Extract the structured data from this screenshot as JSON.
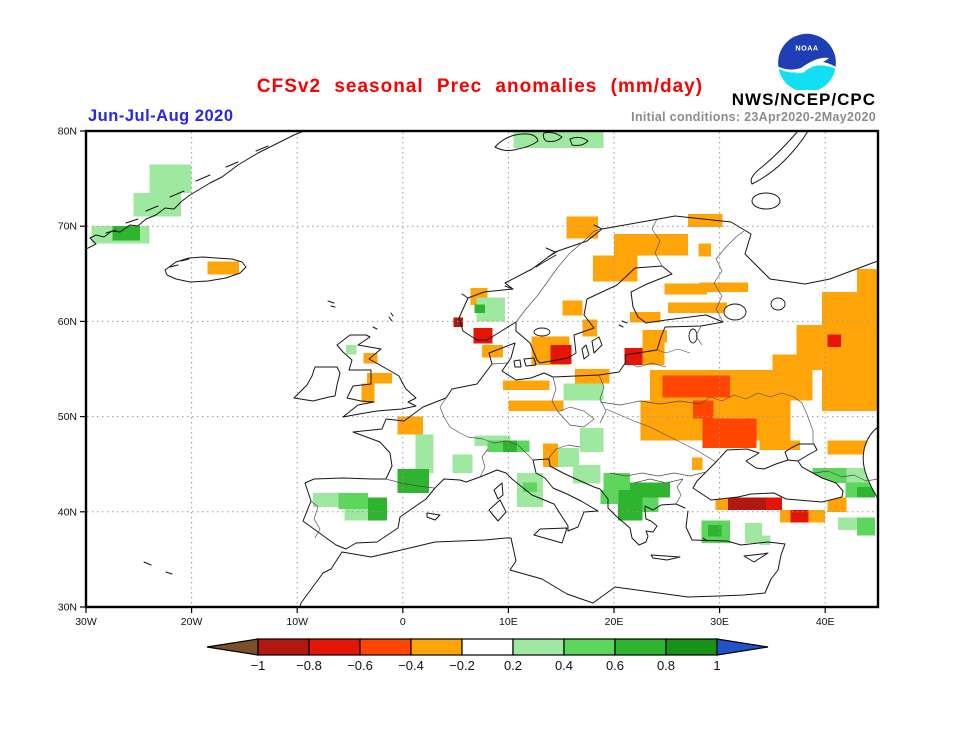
{
  "header": {
    "title": "CFSv2 seasonal Prec anomalies (mm/day)",
    "agency": "NWS/NCEP/CPC",
    "logo_label": "NOAA",
    "season_label": "Jun-Jul-Aug 2020",
    "initial_conditions": "Initial conditions: 23Apr2020-2May2020",
    "title_color": "#fb0000",
    "season_color": "#2626e8",
    "conditions_color": "#8c8c8c"
  },
  "map": {
    "x_ticks": [
      {
        "label": "30W",
        "lon": -30
      },
      {
        "label": "20W",
        "lon": -20
      },
      {
        "label": "10W",
        "lon": -10
      },
      {
        "label": "0",
        "lon": 0
      },
      {
        "label": "10E",
        "lon": 10
      },
      {
        "label": "20E",
        "lon": 20
      },
      {
        "label": "30E",
        "lon": 30
      },
      {
        "label": "40E",
        "lon": 40
      }
    ],
    "y_ticks": [
      {
        "label": "80N",
        "lat": 80
      },
      {
        "label": "70N",
        "lat": 70
      },
      {
        "label": "60N",
        "lat": 60
      },
      {
        "label": "50N",
        "lat": 50
      },
      {
        "label": "40N",
        "lat": 40
      },
      {
        "label": "30N",
        "lat": 30
      }
    ],
    "grid_lons": [
      -20,
      -10,
      0,
      10,
      20,
      30,
      40
    ],
    "grid_lats": [
      40,
      50,
      60,
      70
    ]
  },
  "legend": {
    "labels": [
      "−1",
      "−0.8",
      "−0.6",
      "−0.4",
      "−0.2",
      "0.2",
      "0.4",
      "0.6",
      "0.8",
      "1"
    ],
    "box_colors": [
      "#b2180f",
      "#e51505",
      "#ff4500",
      "#ffa50a",
      "#ffffff",
      "#9fe89f",
      "#5dd65d",
      "#2eb42e",
      "#169216"
    ],
    "arrow_left_color": "#7c4f2b",
    "arrow_right_color": "#2353cb"
  },
  "chart_data": {
    "type": "heatmap",
    "title": "CFSv2 seasonal Prec anomalies (mm/day)",
    "season": "Jun-Jul-Aug 2020",
    "units": "mm/day",
    "lon_range": [
      -30,
      45
    ],
    "lat_range": [
      30,
      80
    ],
    "levels": {
      "m4": {
        "range_mm_day": "-1.0 to -0.8",
        "color": "#b2180f"
      },
      "m3": {
        "range_mm_day": "-0.8 to -0.6",
        "color": "#e51505"
      },
      "m2": {
        "range_mm_day": "-0.6 to -0.4",
        "color": "#ff4500"
      },
      "m1": {
        "range_mm_day": "-0.4 to -0.2",
        "color": "#ffa50a"
      },
      "p1": {
        "range_mm_day": "0.2 to 0.4",
        "color": "#9fe89f"
      },
      "p2": {
        "range_mm_day": "0.4 to 0.6",
        "color": "#5dd65d"
      },
      "p3": {
        "range_mm_day": "0.6 to 0.8",
        "color": "#2eb42e"
      },
      "p4": {
        "range_mm_day": "0.8 to 1.0",
        "color": "#169216"
      }
    },
    "cells": [
      [
        -24,
        76.5,
        4,
        3,
        "p1"
      ],
      [
        -25.5,
        73.5,
        4.5,
        2.5,
        "p1"
      ],
      [
        -29.5,
        70,
        5.5,
        1.8,
        "p1"
      ],
      [
        -27.5,
        70,
        2.6,
        1.5,
        "p3"
      ],
      [
        10.5,
        80,
        8.5,
        1.8,
        "p1"
      ],
      [
        -18.5,
        66.3,
        3,
        1.4,
        "m1"
      ],
      [
        15.5,
        71,
        3,
        2.3,
        "m1"
      ],
      [
        27,
        71.3,
        3.3,
        1.4,
        "m1"
      ],
      [
        28,
        68.2,
        1.2,
        1.4,
        "m1"
      ],
      [
        20,
        69.2,
        7,
        2.3,
        "m1"
      ],
      [
        18,
        66.9,
        4.2,
        2.7,
        "m1"
      ],
      [
        24.8,
        64,
        4,
        1.2,
        "m1"
      ],
      [
        28.1,
        64.1,
        4.6,
        1,
        "m1"
      ],
      [
        25.1,
        62,
        5.6,
        1.1,
        "m1"
      ],
      [
        21.5,
        61,
        2.9,
        1.1,
        "m1"
      ],
      [
        15.1,
        62.2,
        1.9,
        1.6,
        "m1"
      ],
      [
        17,
        60.2,
        1.4,
        1.8,
        "m1"
      ],
      [
        6.4,
        63.5,
        1.6,
        1.8,
        "m1"
      ],
      [
        7,
        62.5,
        2.7,
        2.5,
        "p1"
      ],
      [
        6.8,
        61.8,
        1,
        0.9,
        "p3"
      ],
      [
        4.8,
        60.4,
        0.9,
        1,
        "m4"
      ],
      [
        6.7,
        59.3,
        1.8,
        1.6,
        "m3"
      ],
      [
        7.5,
        57.5,
        2,
        1.3,
        "m1"
      ],
      [
        12.2,
        58.4,
        3.6,
        3,
        "m1"
      ],
      [
        14,
        57.5,
        2,
        2,
        "m3"
      ],
      [
        22.7,
        59.1,
        2.3,
        1.3,
        "m1"
      ],
      [
        22.7,
        58.2,
        2.1,
        2.8,
        "m1"
      ],
      [
        21,
        57.2,
        1.7,
        1.8,
        "m3"
      ],
      [
        16.3,
        55,
        3.3,
        1.5,
        "m1"
      ],
      [
        15.2,
        53.5,
        3.8,
        1.8,
        "p1"
      ],
      [
        9.5,
        53.8,
        4.4,
        1,
        "m1"
      ],
      [
        10,
        51.7,
        5.2,
        1.1,
        "m1"
      ],
      [
        39.7,
        63.1,
        5.3,
        3.5,
        "m1"
      ],
      [
        43,
        65.5,
        2,
        2.4,
        "m1"
      ],
      [
        37.3,
        59.6,
        7.7,
        3.1,
        "m1"
      ],
      [
        40.2,
        58.6,
        1.3,
        1.3,
        "m3"
      ],
      [
        35,
        56.5,
        10,
        1.6,
        "m1"
      ],
      [
        39.7,
        54.9,
        5.3,
        4.3,
        "m1"
      ],
      [
        23.4,
        54.9,
        15.4,
        3.2,
        "m1"
      ],
      [
        24.6,
        54.3,
        6.4,
        2.3,
        "m2"
      ],
      [
        22.5,
        51.7,
        14.2,
        4.2,
        "m1"
      ],
      [
        27.5,
        51.7,
        1.9,
        1.9,
        "m2"
      ],
      [
        28.4,
        49.8,
        5.1,
        3.1,
        "m2"
      ],
      [
        27.4,
        45.7,
        1,
        1.3,
        "m1"
      ],
      [
        33.8,
        47.5,
        3.8,
        1,
        "m1"
      ],
      [
        40.2,
        47.5,
        4.8,
        1.5,
        "m1"
      ],
      [
        -5.4,
        57.5,
        1,
        1,
        "p1"
      ],
      [
        -3.7,
        56.7,
        1.3,
        1.1,
        "m1"
      ],
      [
        -3.4,
        54.6,
        2.4,
        1.1,
        "m1"
      ],
      [
        -3.9,
        53.5,
        1.2,
        2,
        "m1"
      ],
      [
        -0.5,
        50,
        2.4,
        1.9,
        "m1"
      ],
      [
        1.2,
        48.1,
        1.7,
        4,
        "p1"
      ],
      [
        4.7,
        46,
        1.9,
        1.9,
        "p1"
      ],
      [
        6.8,
        48,
        3.4,
        1.1,
        "p1"
      ],
      [
        8,
        47.5,
        4,
        1.2,
        "p2"
      ],
      [
        9.5,
        47.5,
        1.3,
        1.2,
        "p3"
      ],
      [
        -0.5,
        44.5,
        3,
        2.5,
        "p3"
      ],
      [
        -8.5,
        42,
        2.4,
        1.5,
        "p1"
      ],
      [
        -6.1,
        42,
        2.8,
        1.7,
        "p2"
      ],
      [
        -3.3,
        41.5,
        1.8,
        2.4,
        "p3"
      ],
      [
        -5.5,
        40.3,
        2.2,
        1.2,
        "p1"
      ],
      [
        10.8,
        44.1,
        2.5,
        2,
        "p1"
      ],
      [
        11.4,
        43.1,
        1.3,
        1.4,
        "p2"
      ],
      [
        10.8,
        42.1,
        2.5,
        1.6,
        "p1"
      ],
      [
        13.3,
        47.2,
        1.4,
        2.5,
        "m1"
      ],
      [
        14.7,
        46.7,
        2,
        2,
        "p1"
      ],
      [
        16.8,
        48.8,
        2.2,
        2.5,
        "p1"
      ],
      [
        16.1,
        44.9,
        2.6,
        1.9,
        "p1"
      ],
      [
        19,
        44.1,
        2.5,
        1.8,
        "p2"
      ],
      [
        21.5,
        43.1,
        3.8,
        1.6,
        "p3"
      ],
      [
        20.4,
        42.3,
        2.3,
        3.2,
        "p3"
      ],
      [
        18.7,
        42.3,
        1.7,
        1.5,
        "p2"
      ],
      [
        22.7,
        41.5,
        1.5,
        1.5,
        "p2"
      ],
      [
        29.6,
        41.6,
        1.2,
        1.4,
        "m1"
      ],
      [
        30.8,
        41.5,
        3.6,
        1.3,
        "m4"
      ],
      [
        34.4,
        41.5,
        1.5,
        1.3,
        "m3"
      ],
      [
        35.7,
        40.2,
        1,
        1.3,
        "m1"
      ],
      [
        36.7,
        40.2,
        1.7,
        1.3,
        "m3"
      ],
      [
        38.4,
        40.2,
        1.6,
        1.3,
        "m1"
      ],
      [
        40.2,
        41.5,
        1.8,
        1.5,
        "m1"
      ],
      [
        28.3,
        39.1,
        2.7,
        2.4,
        "p2"
      ],
      [
        28.9,
        38.6,
        1.3,
        1.2,
        "p3"
      ],
      [
        32.4,
        38.8,
        1.6,
        2.1,
        "p1"
      ],
      [
        33.8,
        37.5,
        1,
        1,
        "p1"
      ],
      [
        38.8,
        44.6,
        3.2,
        1.6,
        "p2"
      ],
      [
        42,
        44.6,
        2.2,
        1.6,
        "p1"
      ],
      [
        41.9,
        43.1,
        2.8,
        1.6,
        "p2"
      ],
      [
        43,
        42.6,
        1.7,
        1.1,
        "p3"
      ],
      [
        41.2,
        39.4,
        2.4,
        1.3,
        "p1"
      ],
      [
        43,
        39.4,
        1.7,
        1.9,
        "p2"
      ]
    ]
  }
}
